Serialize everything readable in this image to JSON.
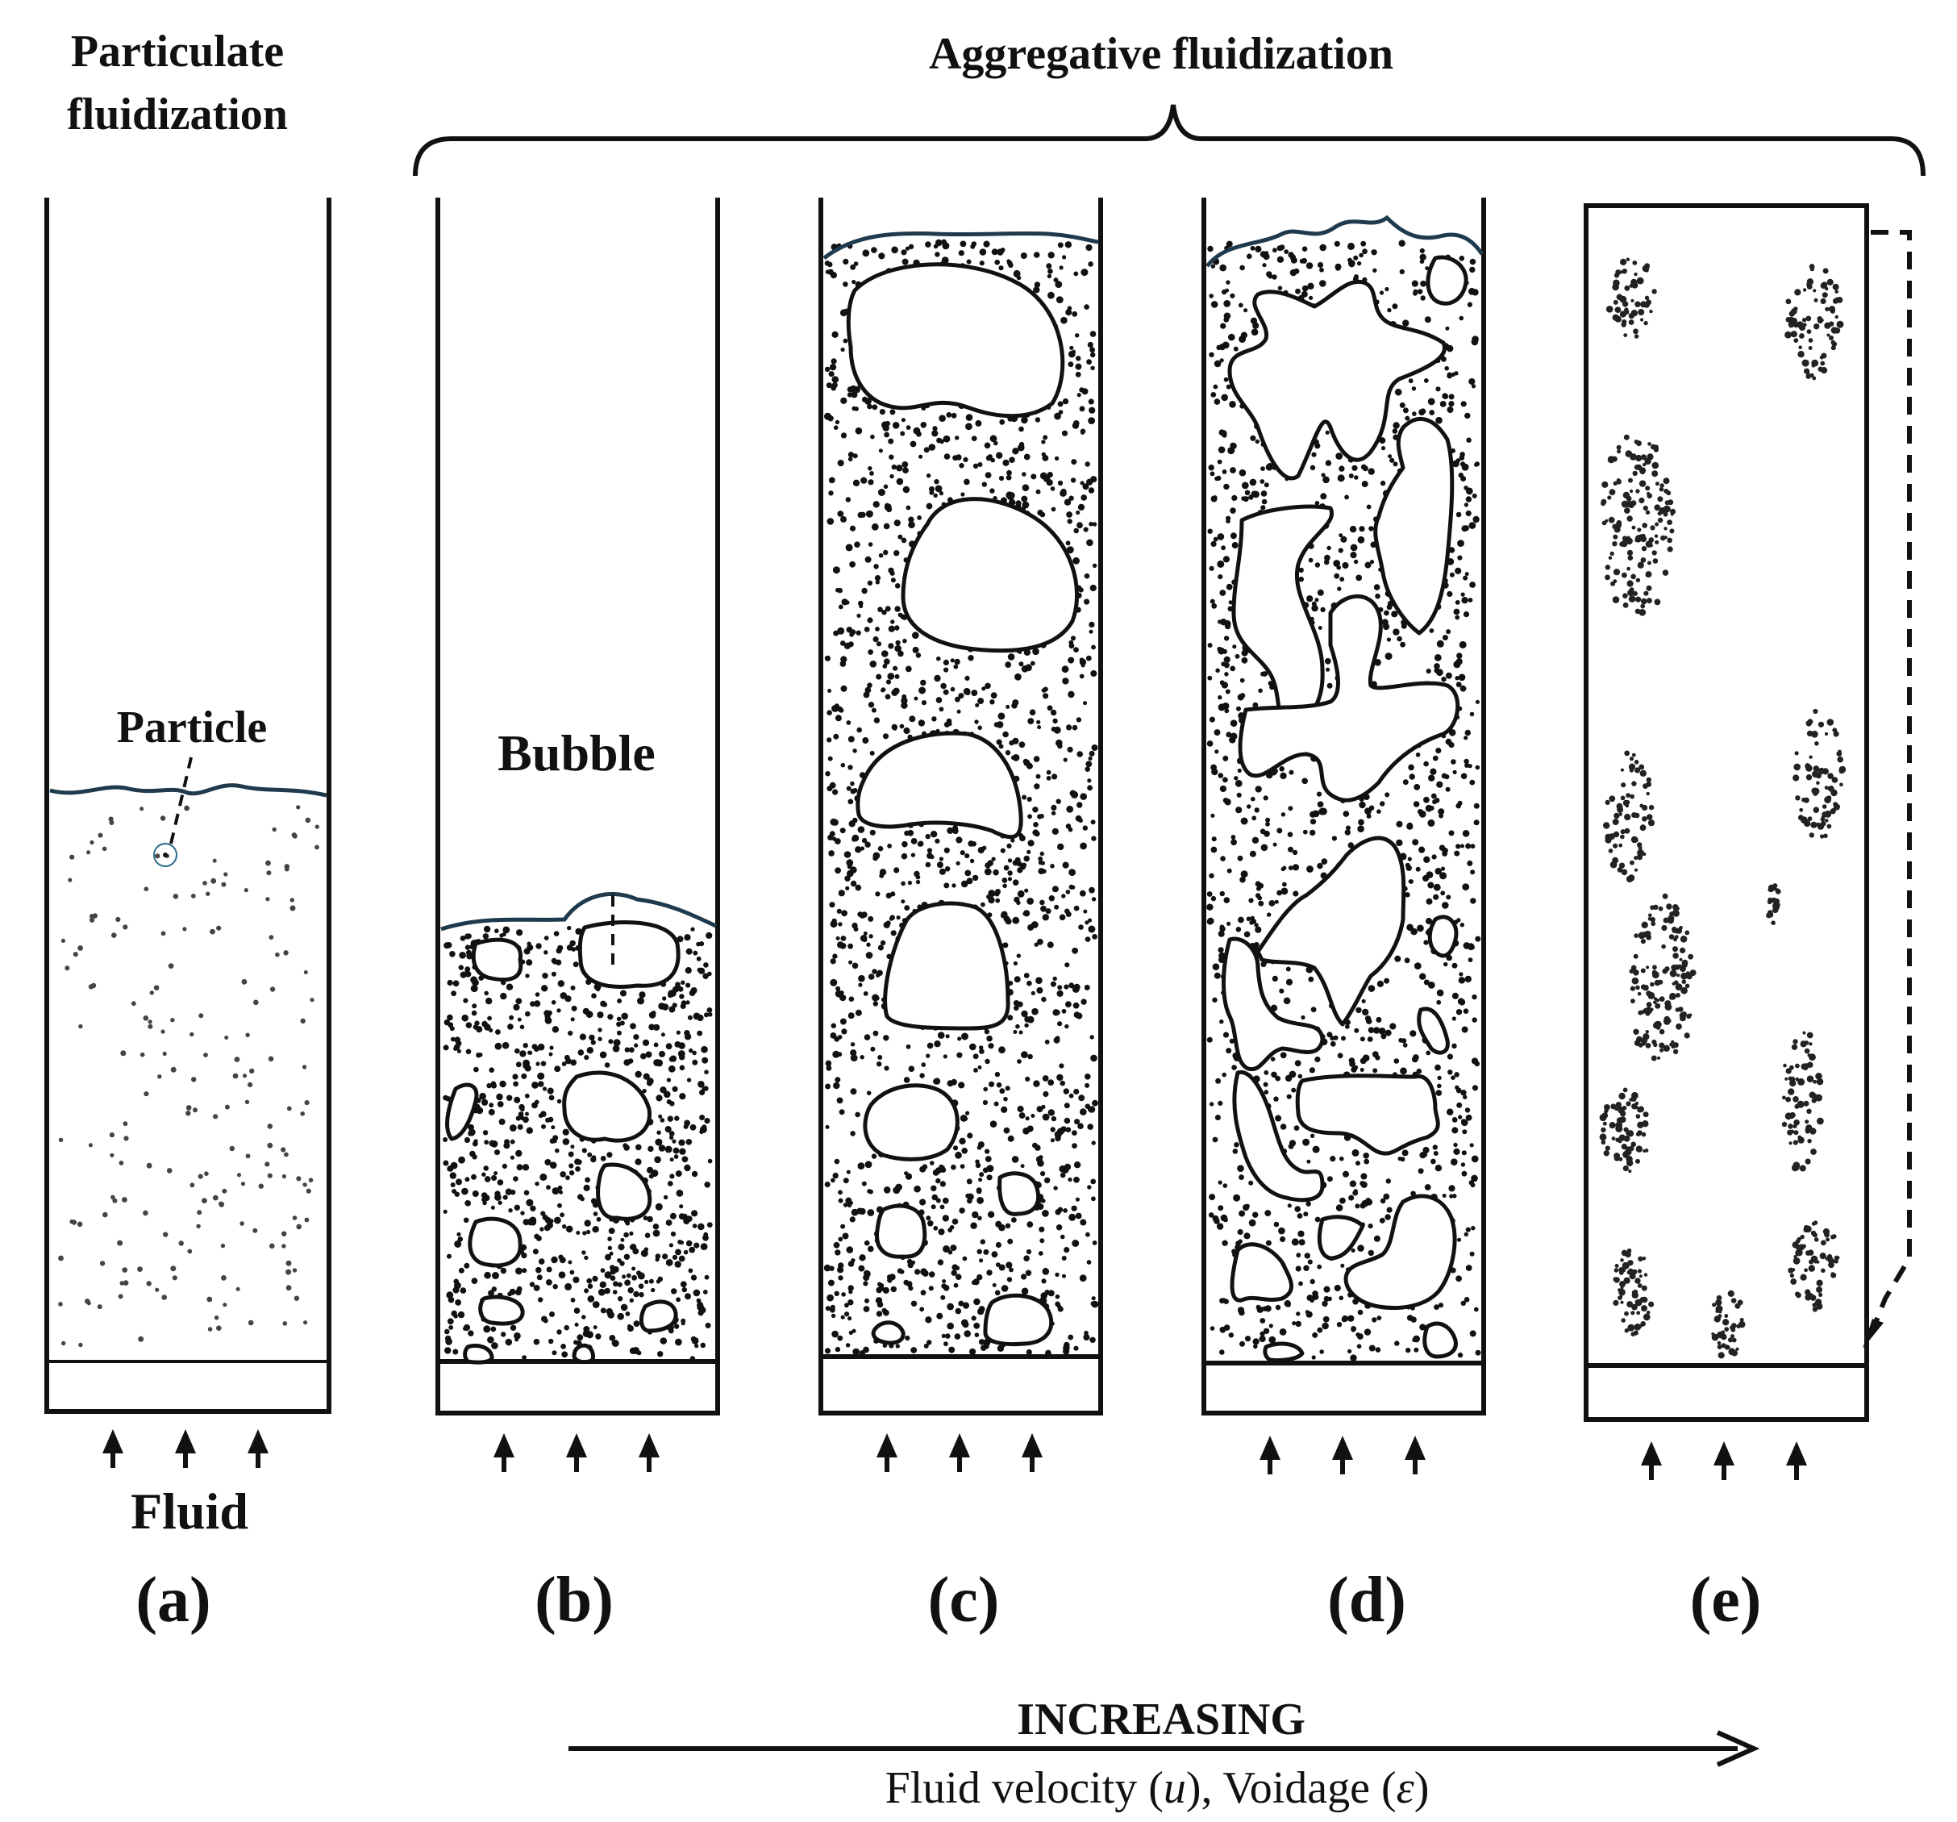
{
  "header": {
    "particulate": [
      "Particulate",
      "fluidization"
    ],
    "aggregative": "Aggregative fluidization"
  },
  "labels": {
    "particle": "Particle",
    "bubble": "Bubble",
    "fluid": "Fluid"
  },
  "panels": [
    {
      "id": "a",
      "caption": "(a)"
    },
    {
      "id": "b",
      "caption": "(b)"
    },
    {
      "id": "c",
      "caption": "(c)"
    },
    {
      "id": "d",
      "caption": "(d)"
    },
    {
      "id": "e",
      "caption": "(e)"
    }
  ],
  "trend": {
    "title": "INCREASING",
    "subtitle_parts": [
      "Fluid velocity (",
      "u",
      "), Voidage (",
      "ε",
      ")"
    ]
  },
  "colors": {
    "ink": "#111111",
    "surface": "#1f3a4d",
    "particle_circle": "#2a6a8a"
  }
}
